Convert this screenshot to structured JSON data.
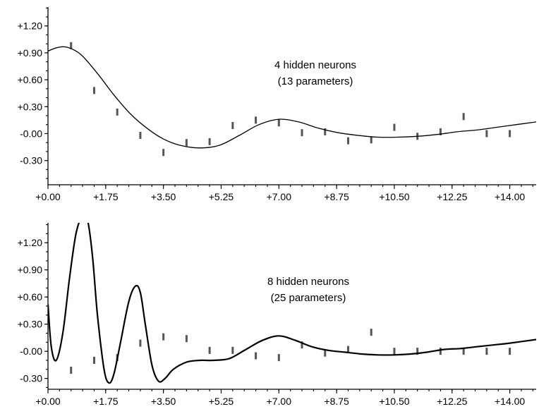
{
  "chart_data": [
    {
      "type": "scatter",
      "annotation_lines": [
        "4 hidden neurons",
        "(13 parameters)"
      ],
      "x_ticks": [
        "+0.00",
        "+1.75",
        "+3.50",
        "+5.25",
        "+7.00",
        "+8.75",
        "+10.50",
        "+12.25",
        "+14.00"
      ],
      "y_ticks": [
        "+1.20",
        "+0.90",
        "+0.60",
        "+0.30",
        "-0.00",
        "-0.30"
      ],
      "xlim": [
        0,
        14.8
      ],
      "ylim": [
        -0.57,
        1.41
      ],
      "series": [
        {
          "type": "scatter",
          "x": [
            0.7,
            1.4,
            2.1,
            2.8,
            3.5,
            4.2,
            4.9,
            5.6,
            6.3,
            7.0,
            7.7,
            8.4,
            9.1,
            9.8,
            10.5,
            11.2,
            11.9,
            12.6,
            13.3,
            14.0
          ],
          "y": [
            0.98,
            0.48,
            0.24,
            -0.02,
            -0.21,
            -0.1,
            -0.09,
            0.09,
            0.15,
            0.12,
            0.01,
            0.02,
            -0.08,
            -0.07,
            0.07,
            -0.03,
            0.02,
            0.19,
            0.0,
            0.0
          ]
        },
        {
          "type": "line",
          "x": [
            0,
            0.3,
            0.6,
            1.0,
            1.5,
            2.0,
            2.5,
            3.0,
            3.5,
            4.0,
            4.6,
            5.2,
            5.8,
            6.4,
            7.0,
            7.6,
            8.2,
            8.8,
            9.4,
            10.0,
            10.6,
            11.2,
            11.8,
            12.4,
            13.0,
            13.6,
            14.2,
            14.8
          ],
          "y": [
            0.92,
            0.96,
            0.96,
            0.88,
            0.67,
            0.43,
            0.22,
            0.06,
            -0.06,
            -0.13,
            -0.16,
            -0.13,
            -0.02,
            0.1,
            0.16,
            0.13,
            0.06,
            0.01,
            -0.02,
            -0.04,
            -0.04,
            -0.03,
            -0.01,
            0.02,
            0.04,
            0.07,
            0.1,
            0.13
          ]
        }
      ]
    },
    {
      "type": "scatter",
      "annotation_lines": [
        "8 hidden neurons",
        "(25 parameters)"
      ],
      "x_ticks": [
        "+0.00",
        "+1.75",
        "+3.50",
        "+5.25",
        "+7.00",
        "+8.75",
        "+10.50",
        "+12.25",
        "+14.00"
      ],
      "y_ticks": [
        "+1.20",
        "+0.90",
        "+0.60",
        "+0.30",
        "-0.00",
        "-0.30"
      ],
      "xlim": [
        0,
        14.8
      ],
      "ylim": [
        -0.42,
        1.42
      ],
      "series": [
        {
          "type": "scatter",
          "x": [
            0.7,
            1.4,
            2.1,
            2.8,
            3.5,
            4.2,
            4.9,
            5.6,
            6.3,
            7.0,
            7.7,
            8.4,
            9.1,
            9.8,
            10.5,
            11.2,
            11.9,
            12.6,
            13.3,
            14.0
          ],
          "y": [
            -0.21,
            -0.1,
            -0.07,
            0.09,
            0.16,
            0.14,
            0.01,
            0.01,
            -0.05,
            -0.07,
            0.07,
            -0.02,
            0.02,
            0.21,
            0.0,
            0.0,
            0.0,
            0.0,
            0.0,
            0.0
          ]
        },
        {
          "type": "line",
          "x": [
            0,
            0.1,
            0.25,
            0.45,
            0.65,
            0.85,
            1.05,
            1.2,
            1.35,
            1.5,
            1.7,
            1.85,
            2.0,
            2.2,
            2.45,
            2.65,
            2.8,
            2.95,
            3.15,
            3.35,
            3.55,
            3.8,
            4.2,
            4.6,
            5.0,
            5.5,
            6.0,
            6.5,
            7.0,
            7.5,
            8.0,
            8.5,
            9.0,
            9.5,
            10.0,
            10.5,
            11.0,
            11.5,
            12.0,
            12.5,
            13.0,
            13.5,
            14.0,
            14.8
          ],
          "y": [
            0.52,
            0.05,
            -0.1,
            0.2,
            0.8,
            1.3,
            1.5,
            1.45,
            1.05,
            0.4,
            -0.2,
            -0.35,
            -0.25,
            0.1,
            0.55,
            0.72,
            0.65,
            0.3,
            -0.15,
            -0.33,
            -0.3,
            -0.2,
            -0.12,
            -0.1,
            -0.1,
            -0.08,
            0.02,
            0.12,
            0.17,
            0.12,
            0.05,
            0.01,
            -0.01,
            -0.03,
            -0.04,
            -0.04,
            -0.03,
            -0.01,
            0.02,
            0.03,
            0.05,
            0.07,
            0.09,
            0.13
          ]
        }
      ]
    }
  ]
}
